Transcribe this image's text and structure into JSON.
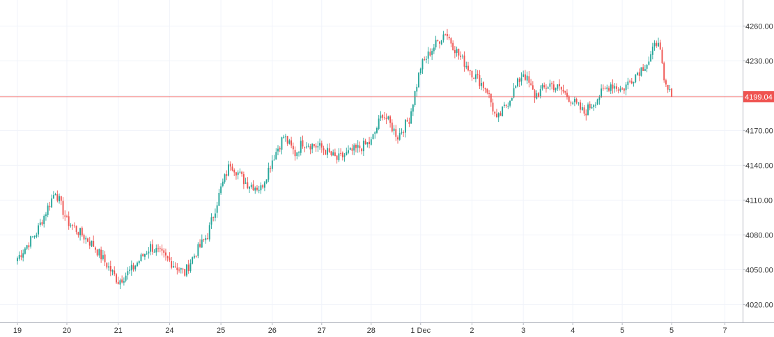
{
  "chart_data": {
    "type": "candlestick",
    "title": "",
    "xlabel": "",
    "ylabel": "",
    "ylim": [
      4007,
      4280
    ],
    "grid": true,
    "x_ticks": [
      {
        "label": "19",
        "slot": 0
      },
      {
        "label": "20",
        "slot": 26
      },
      {
        "label": "21",
        "slot": 53
      },
      {
        "label": "24",
        "slot": 80
      },
      {
        "label": "25",
        "slot": 107
      },
      {
        "label": "26",
        "slot": 134
      },
      {
        "label": "27",
        "slot": 160
      },
      {
        "label": "28",
        "slot": 186
      },
      {
        "label": "1 Dec",
        "slot": 212
      },
      {
        "label": "2",
        "slot": 239
      },
      {
        "label": "3",
        "slot": 266
      },
      {
        "label": "4",
        "slot": 292
      },
      {
        "label": "5",
        "slot": 318
      },
      {
        "label": "5",
        "slot": 344
      },
      {
        "label": "7",
        "slot": 372
      }
    ],
    "y_ticks": [
      "4260.00",
      "4230.00",
      "4200.00",
      "4170.00",
      "4140.00",
      "4110.00",
      "4080.00",
      "4050.00",
      "4020.00"
    ],
    "y_tick_values": [
      4260,
      4230,
      4200,
      4170,
      4140,
      4110,
      4080,
      4050,
      4020
    ],
    "current_price": {
      "value": 4199.04,
      "label": "4199.04"
    },
    "anchors": [
      [
        0,
        4060
      ],
      [
        10,
        4082
      ],
      [
        20,
        4118
      ],
      [
        26,
        4092
      ],
      [
        40,
        4071
      ],
      [
        53,
        4040
      ],
      [
        60,
        4050
      ],
      [
        70,
        4070
      ],
      [
        78,
        4060
      ],
      [
        88,
        4047
      ],
      [
        92,
        4060
      ],
      [
        100,
        4080
      ],
      [
        107,
        4120
      ],
      [
        112,
        4142
      ],
      [
        120,
        4125
      ],
      [
        128,
        4120
      ],
      [
        134,
        4145
      ],
      [
        140,
        4165
      ],
      [
        146,
        4150
      ],
      [
        150,
        4160
      ],
      [
        160,
        4155
      ],
      [
        168,
        4145
      ],
      [
        176,
        4152
      ],
      [
        186,
        4160
      ],
      [
        192,
        4185
      ],
      [
        200,
        4165
      ],
      [
        206,
        4180
      ],
      [
        212,
        4225
      ],
      [
        218,
        4240
      ],
      [
        225,
        4255
      ],
      [
        232,
        4235
      ],
      [
        239,
        4220
      ],
      [
        247,
        4205
      ],
      [
        252,
        4178
      ],
      [
        258,
        4195
      ],
      [
        266,
        4220
      ],
      [
        272,
        4200
      ],
      [
        280,
        4210
      ],
      [
        286,
        4205
      ],
      [
        292,
        4195
      ],
      [
        298,
        4185
      ],
      [
        306,
        4200
      ],
      [
        312,
        4210
      ],
      [
        318,
        4205
      ],
      [
        326,
        4220
      ],
      [
        332,
        4230
      ],
      [
        337,
        4250
      ],
      [
        340,
        4210
      ],
      [
        344,
        4199.04
      ]
    ],
    "volatility": 4.2,
    "colors": {
      "up": "#26a69a",
      "down": "#ef5350",
      "grid": "#f0f3fa",
      "price_line": "#ef5350",
      "price_tag_bg": "#ef5350"
    }
  }
}
